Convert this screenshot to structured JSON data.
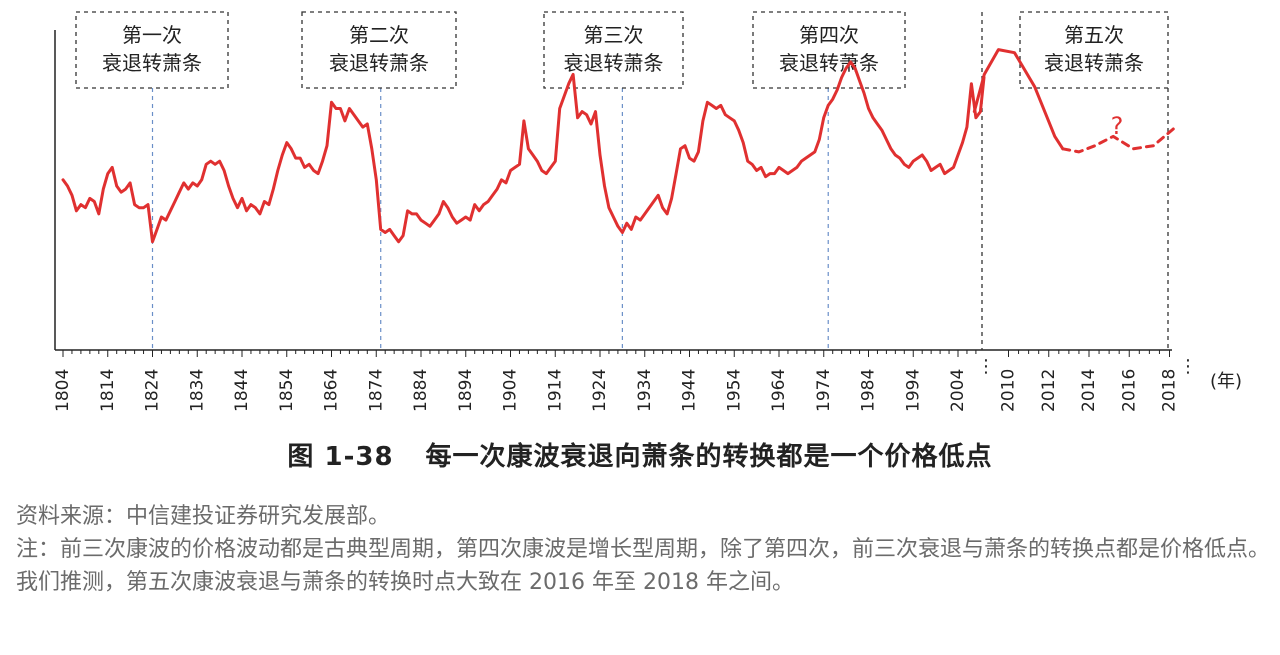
{
  "chart_data": {
    "type": "line",
    "x_unit_label": "(年)",
    "x_ticks_main": [
      "1804",
      "1814",
      "1824",
      "1834",
      "1844",
      "1854",
      "1864",
      "1874",
      "1884",
      "1894",
      "1904",
      "1914",
      "1924",
      "1934",
      "1944",
      "1954",
      "1964",
      "1974",
      "1984",
      "1994",
      "2004"
    ],
    "x_ticks_zoom": [
      "2010",
      "2012",
      "2014",
      "2016",
      "2018"
    ],
    "axis_break_marks": [
      "⋮",
      "⋮"
    ],
    "series": [
      {
        "style": "solid",
        "color": "#e03030",
        "points": [
          [
            1804,
            62
          ],
          [
            1805,
            60
          ],
          [
            1806,
            57
          ],
          [
            1807,
            52
          ],
          [
            1808,
            54
          ],
          [
            1809,
            53
          ],
          [
            1810,
            56
          ],
          [
            1811,
            55
          ],
          [
            1812,
            51
          ],
          [
            1813,
            59
          ],
          [
            1814,
            64
          ],
          [
            1815,
            66
          ],
          [
            1816,
            60
          ],
          [
            1817,
            58
          ],
          [
            1818,
            59
          ],
          [
            1819,
            61
          ],
          [
            1820,
            54
          ],
          [
            1821,
            53
          ],
          [
            1822,
            53
          ],
          [
            1823,
            54
          ],
          [
            1824,
            42
          ],
          [
            1825,
            46
          ],
          [
            1826,
            50
          ],
          [
            1827,
            49
          ],
          [
            1828,
            52
          ],
          [
            1829,
            55
          ],
          [
            1830,
            58
          ],
          [
            1831,
            61
          ],
          [
            1832,
            59
          ],
          [
            1833,
            61
          ],
          [
            1834,
            60
          ],
          [
            1835,
            62
          ],
          [
            1836,
            67
          ],
          [
            1837,
            68
          ],
          [
            1838,
            67
          ],
          [
            1839,
            68
          ],
          [
            1840,
            65
          ],
          [
            1841,
            60
          ],
          [
            1842,
            56
          ],
          [
            1843,
            53
          ],
          [
            1844,
            56
          ],
          [
            1845,
            52
          ],
          [
            1846,
            54
          ],
          [
            1847,
            53
          ],
          [
            1848,
            51
          ],
          [
            1849,
            55
          ],
          [
            1850,
            54
          ],
          [
            1851,
            59
          ],
          [
            1852,
            65
          ],
          [
            1853,
            70
          ],
          [
            1854,
            74
          ],
          [
            1855,
            72
          ],
          [
            1856,
            69
          ],
          [
            1857,
            69
          ],
          [
            1858,
            66
          ],
          [
            1859,
            67
          ],
          [
            1860,
            65
          ],
          [
            1861,
            64
          ],
          [
            1862,
            68
          ],
          [
            1863,
            73
          ],
          [
            1864,
            87
          ],
          [
            1865,
            85
          ],
          [
            1866,
            85
          ],
          [
            1867,
            81
          ],
          [
            1868,
            85
          ],
          [
            1869,
            83
          ],
          [
            1870,
            81
          ],
          [
            1871,
            79
          ],
          [
            1872,
            80
          ],
          [
            1873,
            72
          ],
          [
            1874,
            62
          ],
          [
            1875,
            46
          ],
          [
            1876,
            45
          ],
          [
            1877,
            46
          ],
          [
            1878,
            44
          ],
          [
            1879,
            42
          ],
          [
            1880,
            44
          ],
          [
            1881,
            52
          ],
          [
            1882,
            51
          ],
          [
            1883,
            51
          ],
          [
            1884,
            49
          ],
          [
            1885,
            48
          ],
          [
            1886,
            47
          ],
          [
            1887,
            49
          ],
          [
            1888,
            51
          ],
          [
            1889,
            55
          ],
          [
            1890,
            53
          ],
          [
            1891,
            50
          ],
          [
            1892,
            48
          ],
          [
            1893,
            49
          ],
          [
            1894,
            50
          ],
          [
            1895,
            49
          ],
          [
            1896,
            54
          ],
          [
            1897,
            52
          ],
          [
            1898,
            54
          ],
          [
            1899,
            55
          ],
          [
            1900,
            57
          ],
          [
            1901,
            59
          ],
          [
            1902,
            62
          ],
          [
            1903,
            61
          ],
          [
            1904,
            65
          ],
          [
            1905,
            66
          ],
          [
            1906,
            67
          ],
          [
            1907,
            81
          ],
          [
            1908,
            72
          ],
          [
            1909,
            70
          ],
          [
            1910,
            68
          ],
          [
            1911,
            65
          ],
          [
            1912,
            64
          ],
          [
            1913,
            66
          ],
          [
            1914,
            68
          ],
          [
            1915,
            85
          ],
          [
            1916,
            89
          ],
          [
            1917,
            93
          ],
          [
            1918,
            96
          ],
          [
            1919,
            82
          ],
          [
            1920,
            84
          ],
          [
            1921,
            83
          ],
          [
            1922,
            80
          ],
          [
            1923,
            84
          ],
          [
            1924,
            70
          ],
          [
            1925,
            60
          ],
          [
            1926,
            53
          ],
          [
            1927,
            50
          ],
          [
            1928,
            47
          ],
          [
            1929,
            45
          ],
          [
            1930,
            48
          ],
          [
            1931,
            46
          ],
          [
            1932,
            50
          ],
          [
            1933,
            49
          ],
          [
            1934,
            51
          ],
          [
            1935,
            53
          ],
          [
            1936,
            55
          ],
          [
            1937,
            57
          ],
          [
            1938,
            53
          ],
          [
            1939,
            51
          ],
          [
            1940,
            56
          ],
          [
            1941,
            64
          ],
          [
            1942,
            72
          ],
          [
            1943,
            73
          ],
          [
            1944,
            69
          ],
          [
            1945,
            68
          ],
          [
            1946,
            71
          ],
          [
            1947,
            81
          ],
          [
            1948,
            87
          ],
          [
            1949,
            86
          ],
          [
            1950,
            85
          ],
          [
            1951,
            86
          ],
          [
            1952,
            83
          ],
          [
            1953,
            82
          ],
          [
            1954,
            81
          ],
          [
            1955,
            78
          ],
          [
            1956,
            74
          ],
          [
            1957,
            68
          ],
          [
            1958,
            67
          ],
          [
            1959,
            65
          ],
          [
            1960,
            66
          ],
          [
            1961,
            63
          ],
          [
            1962,
            64
          ],
          [
            1963,
            64
          ],
          [
            1964,
            66
          ],
          [
            1965,
            65
          ],
          [
            1966,
            64
          ],
          [
            1967,
            65
          ],
          [
            1968,
            66
          ],
          [
            1969,
            68
          ],
          [
            1970,
            69
          ],
          [
            1971,
            70
          ],
          [
            1972,
            71
          ],
          [
            1973,
            75
          ],
          [
            1974,
            82
          ],
          [
            1975,
            86
          ],
          [
            1976,
            88
          ],
          [
            1977,
            91
          ],
          [
            1978,
            95
          ],
          [
            1979,
            98
          ],
          [
            1980,
            100
          ],
          [
            1981,
            98
          ],
          [
            1982,
            94
          ],
          [
            1983,
            90
          ],
          [
            1984,
            85
          ],
          [
            1985,
            82
          ],
          [
            1986,
            80
          ],
          [
            1987,
            78
          ],
          [
            1988,
            75
          ],
          [
            1989,
            72
          ],
          [
            1990,
            70
          ],
          [
            1991,
            69
          ],
          [
            1992,
            67
          ],
          [
            1993,
            66
          ],
          [
            1994,
            68
          ],
          [
            1995,
            69
          ],
          [
            1996,
            70
          ],
          [
            1997,
            68
          ],
          [
            1998,
            65
          ],
          [
            1999,
            66
          ],
          [
            2000,
            67
          ],
          [
            2001,
            64
          ],
          [
            2002,
            65
          ],
          [
            2003,
            66
          ],
          [
            2004,
            70
          ],
          [
            2005,
            74
          ],
          [
            2006,
            79
          ],
          [
            2007,
            93
          ],
          [
            2008,
            82
          ],
          [
            2009,
            84
          ],
          [
            2010,
            95
          ]
        ]
      },
      {
        "style": "solid-zoom",
        "color": "#e03030",
        "points": [
          [
            2008.3,
            84
          ],
          [
            2008.8,
            96
          ],
          [
            2009.5,
            104
          ],
          [
            2010.3,
            103
          ],
          [
            2011.3,
            92
          ],
          [
            2012.3,
            76
          ],
          [
            2012.7,
            72
          ]
        ]
      },
      {
        "style": "dashed",
        "color": "#e03030",
        "points": [
          [
            2012.7,
            72
          ],
          [
            2013.5,
            71
          ],
          [
            2014.3,
            73
          ],
          [
            2015.2,
            76
          ],
          [
            2016.2,
            72
          ],
          [
            2017.2,
            73
          ],
          [
            2018.3,
            79
          ]
        ]
      }
    ],
    "phase_labels": [
      {
        "line1": "第一次",
        "line2": "衰退转萧条"
      },
      {
        "line1": "第二次",
        "line2": "衰退转萧条"
      },
      {
        "line1": "第三次",
        "line2": "衰退转萧条"
      },
      {
        "line1": "第四次",
        "line2": "衰退转萧条"
      },
      {
        "line1": "第五次",
        "line2": "衰退转萧条"
      }
    ],
    "turning_points": [
      1824,
      1875,
      1929,
      1975
    ],
    "question_mark": "?",
    "grid": false,
    "legend": "none"
  },
  "caption": {
    "figure_number": "图 1-38",
    "title": "每一次康波衰退向萧条的转换都是一个价格低点"
  },
  "notes": {
    "source": "资料来源：中信建投证券研究发展部。",
    "note": "注：前三次康波的价格波动都是古典型周期，第四次康波是增长型周期，除了第四次，前三次衰退与萧条的转换点都是价格低点。我们推测，第五次康波衰退与萧条的转换时点大致在 2016 年至 2018 年之间。"
  }
}
